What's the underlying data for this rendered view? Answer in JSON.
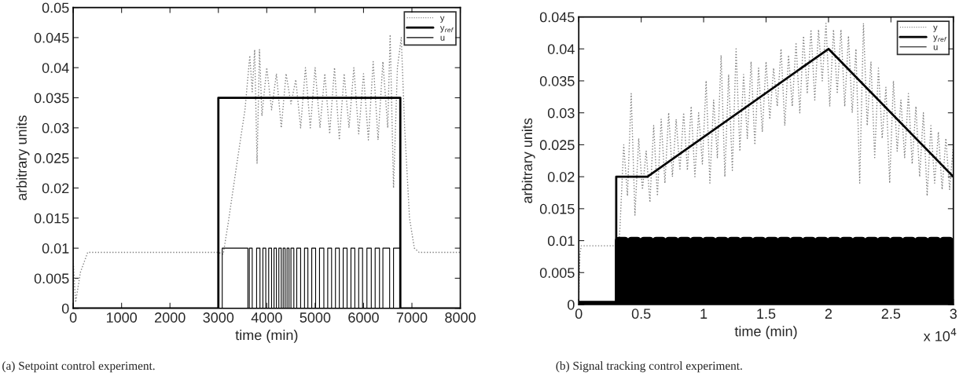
{
  "chart_data": [
    {
      "type": "line",
      "xlabel": "time (min)",
      "ylabel": "arbitrary units",
      "xlim": [
        0,
        8000
      ],
      "xticks": [
        0,
        1000,
        2000,
        3000,
        4000,
        5000,
        6000,
        7000,
        8000
      ],
      "ylim": [
        0,
        0.05
      ],
      "yticks": [
        0,
        0.005,
        0.01,
        0.015,
        0.02,
        0.025,
        0.03,
        0.035,
        0.04,
        0.045,
        0.05
      ],
      "legend": "top right",
      "grid": false,
      "annotations": [
        "(a) Setpoint control experiment."
      ],
      "series": [
        {
          "name": "y",
          "color": "#808080",
          "line_style": "dotted",
          "x": [
            0,
            50,
            150,
            300,
            3000,
            3100,
            3200,
            3400,
            3550,
            3650,
            3700,
            3750,
            3800,
            3850,
            3900,
            4000,
            4100,
            4200,
            4300,
            4400,
            4500,
            4600,
            4700,
            4800,
            4900,
            5000,
            5100,
            5200,
            5300,
            5400,
            5500,
            5600,
            5700,
            5800,
            5900,
            6000,
            6100,
            6200,
            6300,
            6400,
            6500,
            6550,
            6620,
            6700,
            6780,
            6850,
            6950,
            7050,
            7150,
            8000
          ],
          "values": [
            0.008,
            0.001,
            0.006,
            0.0093,
            0.0093,
            0.009,
            0.014,
            0.025,
            0.033,
            0.042,
            0.036,
            0.043,
            0.024,
            0.043,
            0.032,
            0.04,
            0.033,
            0.039,
            0.03,
            0.039,
            0.034,
            0.038,
            0.03,
            0.04,
            0.03,
            0.04,
            0.03,
            0.039,
            0.029,
            0.04,
            0.028,
            0.039,
            0.03,
            0.04,
            0.029,
            0.039,
            0.028,
            0.041,
            0.028,
            0.041,
            0.03,
            0.0455,
            0.02,
            0.04,
            0.045,
            0.03,
            0.015,
            0.01,
            0.0093,
            0.0093
          ]
        },
        {
          "name": "y$_{ref}$",
          "color": "#000000",
          "line_style": "solid",
          "x": [
            0,
            3000,
            3000,
            6760,
            6760,
            8000
          ],
          "values": [
            0,
            0,
            0.035,
            0.035,
            0,
            0
          ]
        },
        {
          "name": "u",
          "color": "#000000",
          "line_style": "solid",
          "x": [
            0,
            3080,
            3080,
            3610,
            3610,
            3640,
            3640,
            3700,
            3700,
            3790,
            3790,
            3860,
            3860,
            3920,
            3920,
            3980,
            3980,
            4040,
            4040,
            4100,
            4100,
            4150,
            4150,
            4200,
            4200,
            4250,
            4250,
            4300,
            4300,
            4340,
            4340,
            4380,
            4380,
            4420,
            4420,
            4460,
            4460,
            4500,
            4500,
            4560,
            4560,
            4620,
            4620,
            4700,
            4700,
            4780,
            4780,
            4850,
            4850,
            4930,
            4930,
            5010,
            5010,
            5090,
            5090,
            5180,
            5180,
            5260,
            5260,
            5340,
            5340,
            5420,
            5420,
            5500,
            5500,
            5580,
            5580,
            5660,
            5660,
            5740,
            5740,
            5820,
            5820,
            5900,
            5900,
            5980,
            5980,
            6070,
            6070,
            6160,
            6160,
            6240,
            6240,
            6330,
            6330,
            6400,
            6400,
            6540,
            6540,
            6620,
            6620,
            6760,
            6760,
            8000
          ],
          "values": [
            0,
            0,
            0.01,
            0.01,
            0,
            0,
            0.01,
            0.01,
            0,
            0,
            0.01,
            0.01,
            0,
            0,
            0.01,
            0.01,
            0,
            0,
            0.01,
            0.01,
            0,
            0,
            0.01,
            0.01,
            0,
            0,
            0.01,
            0.01,
            0,
            0,
            0.01,
            0.01,
            0,
            0,
            0.01,
            0.01,
            0,
            0,
            0.01,
            0.01,
            0,
            0,
            0.01,
            0.01,
            0,
            0,
            0.01,
            0.01,
            0,
            0,
            0.01,
            0.01,
            0,
            0,
            0.01,
            0.01,
            0,
            0,
            0.01,
            0.01,
            0,
            0,
            0.01,
            0.01,
            0,
            0,
            0.01,
            0.01,
            0,
            0,
            0.01,
            0.01,
            0,
            0,
            0.01,
            0.01,
            0,
            0,
            0.01,
            0.01,
            0,
            0,
            0.01,
            0.01,
            0,
            0,
            0.01,
            0.01,
            0,
            0,
            0.01,
            0.01,
            0,
            0
          ]
        }
      ]
    },
    {
      "type": "line",
      "xlabel": "time (min)",
      "ylabel": "arbitrary units",
      "xlim": [
        0,
        3
      ],
      "xticks": [
        0,
        0.5,
        1,
        1.5,
        2,
        2.5,
        3
      ],
      "ylim": [
        0,
        0.045
      ],
      "yticks": [
        0,
        0.005,
        0.01,
        0.015,
        0.02,
        0.025,
        0.03,
        0.035,
        0.04,
        0.045
      ],
      "legend": "top right",
      "grid": false,
      "annotations": [
        "x 10$^{4}$",
        "(b) Signal tracking control experiment."
      ],
      "series": [
        {
          "name": "y",
          "color": "#808080",
          "line_style": "dotted",
          "x": [
            0,
            0.01,
            0.02,
            0.32,
            0.33,
            0.36,
            0.39,
            0.42,
            0.45,
            0.48,
            0.51,
            0.54,
            0.57,
            0.6,
            0.63,
            0.66,
            0.69,
            0.72,
            0.75,
            0.78,
            0.81,
            0.84,
            0.87,
            0.9,
            0.93,
            0.96,
            0.99,
            1.02,
            1.05,
            1.08,
            1.11,
            1.14,
            1.17,
            1.2,
            1.23,
            1.26,
            1.29,
            1.32,
            1.35,
            1.38,
            1.41,
            1.44,
            1.47,
            1.5,
            1.53,
            1.56,
            1.59,
            1.62,
            1.65,
            1.68,
            1.71,
            1.74,
            1.77,
            1.8,
            1.83,
            1.86,
            1.89,
            1.92,
            1.95,
            1.98,
            2.01,
            2.04,
            2.07,
            2.1,
            2.13,
            2.16,
            2.19,
            2.22,
            2.25,
            2.28,
            2.31,
            2.34,
            2.37,
            2.4,
            2.43,
            2.46,
            2.49,
            2.52,
            2.55,
            2.58,
            2.61,
            2.64,
            2.67,
            2.7,
            2.73,
            2.76,
            2.79,
            2.82,
            2.85,
            2.88,
            2.91,
            2.94,
            2.97,
            3
          ],
          "values": [
            0.001,
            0.008,
            0.0092,
            0.0092,
            0.012,
            0.025,
            0.017,
            0.033,
            0.014,
            0.026,
            0.018,
            0.024,
            0.016,
            0.028,
            0.017,
            0.029,
            0.019,
            0.03,
            0.02,
            0.029,
            0.021,
            0.03,
            0.021,
            0.031,
            0.02,
            0.03,
            0.022,
            0.035,
            0.019,
            0.032,
            0.023,
            0.039,
            0.02,
            0.036,
            0.021,
            0.04,
            0.024,
            0.036,
            0.026,
            0.038,
            0.025,
            0.037,
            0.027,
            0.038,
            0.029,
            0.037,
            0.031,
            0.04,
            0.028,
            0.039,
            0.031,
            0.041,
            0.03,
            0.042,
            0.033,
            0.043,
            0.032,
            0.043,
            0.035,
            0.044,
            0.031,
            0.043,
            0.033,
            0.043,
            0.031,
            0.042,
            0.03,
            0.04,
            0.019,
            0.044,
            0.028,
            0.038,
            0.023,
            0.037,
            0.026,
            0.034,
            0.019,
            0.035,
            0.024,
            0.032,
            0.023,
            0.033,
            0.022,
            0.031,
            0.02,
            0.03,
            0.017,
            0.028,
            0.019,
            0.027,
            0.018,
            0.026,
            0.018,
            0.025
          ]
        },
        {
          "name": "y$_{ref}$",
          "color": "#000000",
          "line_style": "solid",
          "x": [
            0,
            0.3,
            0.3,
            0.55,
            2,
            3
          ],
          "values": [
            0,
            0,
            0.02,
            0.02,
            0.04,
            0.02
          ]
        },
        {
          "name": "u",
          "color": "#000000",
          "line_style": "solid",
          "x": [
            0,
            0.32,
            0.32,
            0.37,
            0.37,
            0.42,
            0.42,
            0.47,
            0.47,
            0.52,
            0.52,
            0.57,
            0.57,
            0.62,
            0.62,
            0.67,
            0.67,
            0.72,
            0.72,
            0.77,
            0.77,
            0.82,
            0.82,
            0.87,
            0.87,
            0.92,
            0.92,
            0.97,
            0.97,
            1.02,
            1.02,
            1.07,
            1.07,
            1.12,
            1.12,
            1.17,
            1.17,
            1.22,
            1.22,
            1.27,
            1.27,
            1.32,
            1.32,
            1.37,
            1.37,
            1.42,
            1.42,
            1.47,
            1.47,
            1.52,
            1.52,
            1.57,
            1.57,
            1.62,
            1.62,
            1.67,
            1.67,
            1.72,
            1.72,
            1.77,
            1.77,
            1.82,
            1.82,
            1.87,
            1.87,
            1.92,
            1.92,
            1.97,
            1.97,
            2.02,
            2.02,
            2.07,
            2.07,
            2.12,
            2.12,
            2.17,
            2.17,
            2.22,
            2.22,
            2.27,
            2.27,
            2.32,
            2.32,
            2.37,
            2.37,
            2.42,
            2.42,
            2.47,
            2.47,
            2.52,
            2.52,
            2.57,
            2.57,
            2.62,
            2.62,
            2.67,
            2.67,
            2.72,
            2.72,
            2.77,
            2.77,
            2.82,
            2.82,
            2.87,
            2.87,
            2.92,
            2.92,
            2.97,
            2.97,
            3
          ],
          "values": [
            0,
            0,
            0.01,
            0.01,
            0,
            0,
            0.01,
            0.01,
            0,
            0,
            0.01,
            0.01,
            0,
            0,
            0.01,
            0.01,
            0,
            0,
            0.01,
            0.01,
            0,
            0,
            0.01,
            0.01,
            0,
            0,
            0.01,
            0.01,
            0,
            0,
            0.01,
            0.01,
            0,
            0,
            0.01,
            0.01,
            0,
            0,
            0.01,
            0.01,
            0,
            0,
            0.01,
            0.01,
            0,
            0,
            0.01,
            0.01,
            0,
            0,
            0.01,
            0.01,
            0,
            0,
            0.01,
            0.01,
            0,
            0,
            0.01,
            0.01,
            0,
            0,
            0.01,
            0.01,
            0,
            0,
            0.01,
            0.01,
            0,
            0,
            0.01,
            0.01,
            0,
            0,
            0.01,
            0.01,
            0,
            0,
            0.01,
            0.01,
            0,
            0,
            0.01,
            0.01,
            0,
            0,
            0.01,
            0.01,
            0,
            0,
            0.01,
            0.01,
            0,
            0,
            0.01,
            0.01,
            0,
            0,
            0.01,
            0.01,
            0,
            0,
            0.01,
            0.01,
            0,
            0,
            0.01,
            0.01,
            0,
            0
          ]
        }
      ]
    }
  ]
}
